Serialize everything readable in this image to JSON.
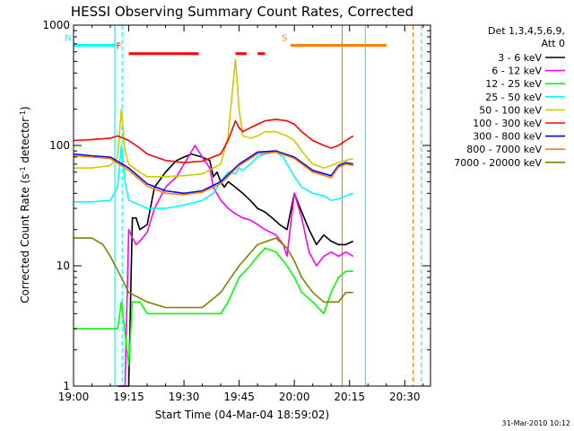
{
  "chart_data": {
    "type": "line",
    "title": "HESSI Observing Summary Count Rates, Corrected",
    "xlabel": "Start Time (04-Mar-04 18:59:02)",
    "ylabel": "Corrected Count Rate (s⁻¹ detector⁻¹)",
    "ylabel_main": "Corrected Count Rate (s",
    "ylabel_sup1": "-1",
    "ylabel_mid": " detector",
    "ylabel_sup2": "-1",
    "ylabel_end": ")",
    "y_scale": "log",
    "xlim": [
      0,
      97
    ],
    "ylim": [
      1,
      1000
    ],
    "x_ticks": [
      {
        "t": 0,
        "label": "19:00"
      },
      {
        "t": 15,
        "label": "19:15"
      },
      {
        "t": 30,
        "label": "19:30"
      },
      {
        "t": 45,
        "label": "19:45"
      },
      {
        "t": 60,
        "label": "20:00"
      },
      {
        "t": 75,
        "label": "20:15"
      },
      {
        "t": 90,
        "label": "20:30"
      }
    ],
    "y_ticks": [
      {
        "v": 1,
        "label": "1"
      },
      {
        "v": 10,
        "label": "10"
      },
      {
        "v": 100,
        "label": "100"
      },
      {
        "v": 1000,
        "label": "1000"
      }
    ],
    "footer_date": "31-Mar-2010 10:12",
    "legend": {
      "header_line1": "Det 1,3,4,5,6,9,",
      "header_line2": "Att 0",
      "placement": "right"
    },
    "series": [
      {
        "name": "3 - 6 keV",
        "color": "#000000",
        "x": [
          12,
          13,
          14,
          15,
          16,
          17,
          18,
          20,
          22,
          25,
          28,
          30,
          32,
          35,
          37,
          38,
          39,
          40,
          41,
          42,
          44,
          46,
          48,
          50,
          52,
          54,
          56,
          58,
          60,
          62,
          64,
          66,
          68,
          70,
          72,
          74,
          76
        ],
        "y": [
          1,
          1,
          1,
          1,
          25,
          25,
          20,
          22,
          45,
          60,
          75,
          80,
          85,
          80,
          75,
          55,
          60,
          50,
          45,
          50,
          45,
          40,
          35,
          30,
          28,
          25,
          22,
          20,
          40,
          28,
          20,
          15,
          18,
          16,
          15,
          15,
          16
        ]
      },
      {
        "name": "6 - 12 keV",
        "color": "#ff00ff",
        "x": [
          12,
          13,
          14,
          15,
          16,
          17,
          18,
          20,
          22,
          25,
          28,
          30,
          33,
          35,
          37,
          38,
          40,
          42,
          44,
          46,
          48,
          50,
          52,
          55,
          57,
          58,
          60,
          62,
          64,
          66,
          68,
          70,
          72,
          74,
          76
        ],
        "y": [
          1,
          1,
          1,
          20,
          17,
          15,
          16,
          19,
          30,
          45,
          55,
          70,
          100,
          80,
          65,
          45,
          35,
          30,
          27,
          25,
          24,
          22,
          20,
          18,
          15,
          12,
          40,
          25,
          13,
          10,
          12,
          13,
          12,
          13,
          12
        ]
      },
      {
        "name": "12 - 25 keV",
        "color": "#00ff00",
        "x": [
          0,
          5,
          10,
          12,
          13,
          15,
          16,
          18,
          20,
          25,
          30,
          35,
          40,
          42,
          45,
          48,
          50,
          52,
          55,
          58,
          60,
          62,
          65,
          68,
          70,
          72,
          74,
          76
        ],
        "y": [
          3,
          3,
          3,
          3,
          5,
          1.5,
          5,
          5,
          4,
          4,
          4,
          4,
          4,
          5,
          8,
          10,
          12,
          14,
          13,
          10,
          8,
          6,
          5,
          4,
          6,
          8,
          9,
          9
        ]
      },
      {
        "name": "25 - 50 keV",
        "color": "#00ffff",
        "x": [
          0,
          5,
          10,
          12,
          13,
          14,
          15,
          18,
          20,
          25,
          30,
          35,
          38,
          40,
          42,
          44,
          45,
          46,
          48,
          50,
          52,
          55,
          57,
          58,
          60,
          62,
          65,
          68,
          70,
          72,
          74,
          76
        ],
        "y": [
          34,
          34,
          35,
          45,
          100,
          50,
          35,
          32,
          30,
          30,
          32,
          35,
          40,
          50,
          60,
          58,
          65,
          62,
          70,
          80,
          85,
          88,
          80,
          70,
          55,
          45,
          40,
          38,
          35,
          36,
          38,
          40
        ]
      },
      {
        "name": "50 - 100 keV",
        "color": "#cccc00",
        "x": [
          0,
          5,
          10,
          12,
          13,
          14,
          15,
          18,
          20,
          25,
          30,
          35,
          40,
          42,
          44,
          45,
          46,
          48,
          50,
          52,
          55,
          58,
          60,
          62,
          65,
          68,
          70,
          72,
          74,
          76
        ],
        "y": [
          65,
          65,
          68,
          80,
          200,
          90,
          70,
          60,
          55,
          55,
          56,
          58,
          70,
          120,
          520,
          200,
          120,
          115,
          120,
          130,
          130,
          120,
          110,
          90,
          70,
          65,
          68,
          72,
          75,
          78
        ]
      },
      {
        "name": "100 - 300 keV",
        "color": "#ff0000",
        "x": [
          0,
          5,
          10,
          12,
          15,
          18,
          20,
          25,
          30,
          35,
          40,
          42,
          44,
          45,
          46,
          48,
          50,
          52,
          55,
          58,
          60,
          62,
          65,
          68,
          70,
          72,
          74,
          76
        ],
        "y": [
          110,
          112,
          115,
          120,
          110,
          95,
          85,
          75,
          72,
          74,
          85,
          110,
          160,
          140,
          130,
          140,
          150,
          160,
          165,
          160,
          150,
          130,
          110,
          100,
          95,
          100,
          110,
          120
        ]
      },
      {
        "name": "300 - 800 keV",
        "color": "#0000ff",
        "x": [
          0,
          5,
          10,
          15,
          20,
          25,
          30,
          35,
          40,
          45,
          50,
          55,
          60,
          65,
          70,
          72,
          74,
          76
        ],
        "y": [
          85,
          82,
          80,
          65,
          48,
          42,
          40,
          42,
          50,
          70,
          88,
          90,
          80,
          62,
          56,
          68,
          72,
          70
        ]
      },
      {
        "name": "800 - 7000 keV",
        "color": "#ff8000",
        "x": [
          0,
          5,
          10,
          15,
          20,
          25,
          30,
          35,
          40,
          45,
          50,
          55,
          60,
          65,
          70,
          72,
          74,
          76
        ],
        "y": [
          82,
          80,
          78,
          62,
          46,
          40,
          39,
          41,
          48,
          68,
          85,
          88,
          78,
          60,
          54,
          66,
          70,
          68
        ]
      },
      {
        "name": "7000 - 20000 keV",
        "color": "#808000",
        "x": [
          0,
          5,
          8,
          10,
          13,
          15,
          20,
          25,
          30,
          35,
          40,
          45,
          50,
          55,
          58,
          60,
          62,
          65,
          68,
          70,
          72,
          74,
          76
        ],
        "y": [
          17,
          17,
          15,
          12,
          8,
          6,
          5,
          4.5,
          4.5,
          4.5,
          6,
          10,
          15,
          17,
          14,
          11,
          8,
          6,
          5,
          5,
          5,
          6,
          6
        ]
      }
    ],
    "flag_segments": [
      {
        "label": "N",
        "color": "#00ffff",
        "y": 680,
        "segments": [
          [
            0,
            11.5
          ]
        ]
      },
      {
        "label": "F",
        "color": "#ff0000",
        "y": 580,
        "segments": [
          [
            15,
            34
          ],
          [
            44,
            47
          ],
          [
            50,
            52
          ]
        ]
      },
      {
        "label": "S",
        "color": "#ff8000",
        "y": 680,
        "segments": [
          [
            59,
            85
          ]
        ]
      }
    ],
    "vertical_lines": [
      {
        "t": 11.2,
        "color": "#00ffff",
        "style": "solid"
      },
      {
        "t": 13.2,
        "color": "#00ffff",
        "style": "dashed"
      },
      {
        "t": 73,
        "color": "#ff8000",
        "style": "solid"
      },
      {
        "t": 79.3,
        "color": "#00ffff",
        "style": "solid"
      },
      {
        "t": 92.3,
        "color": "#ff8000",
        "style": "dashed"
      },
      {
        "t": 94.5,
        "color": "#00ffff",
        "style": "dashed"
      }
    ],
    "grid": false
  }
}
